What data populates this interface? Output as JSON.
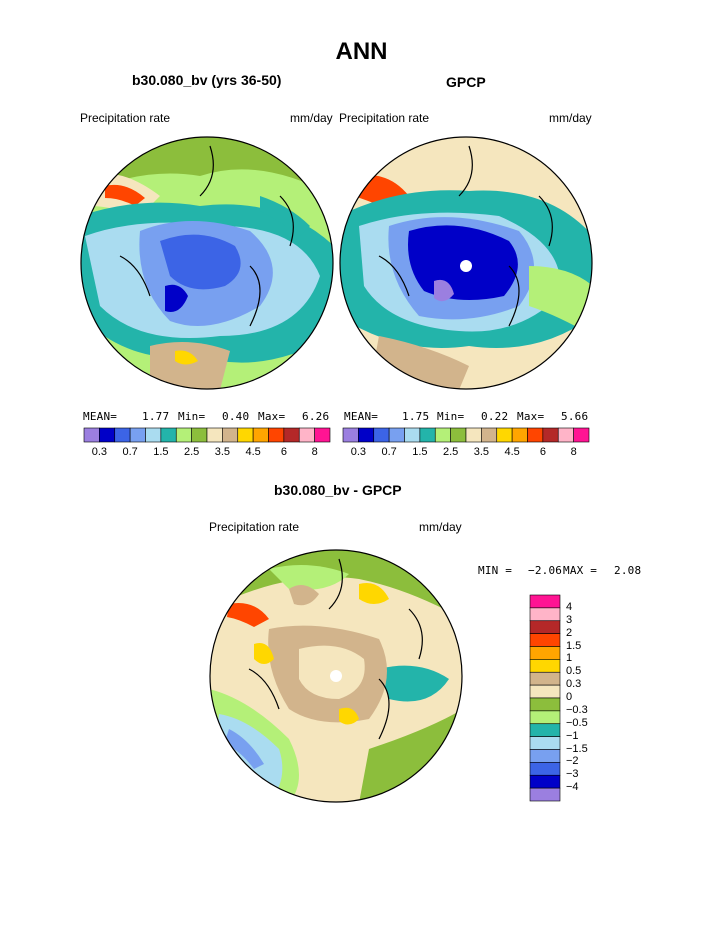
{
  "page_title": "ANN",
  "panels": [
    {
      "title": "b30.080_bv (yrs 36-50)",
      "left_label": "Precipitation rate",
      "right_label": "mm/day",
      "stats": {
        "mean_label": "MEAN=",
        "mean": "1.77",
        "min_label": "Min=",
        "min": "0.40",
        "max_label": "Max=",
        "max": "6.26"
      }
    },
    {
      "title": "GPCP",
      "left_label": "Precipitation rate",
      "right_label": "mm/day",
      "stats": {
        "mean_label": "MEAN=",
        "mean": "1.75",
        "min_label": "Min=",
        "min": "0.22",
        "max_label": "Max=",
        "max": "5.66"
      }
    },
    {
      "title": "b30.080_bv - GPCP",
      "left_label": "Precipitation rate",
      "right_label": "mm/day",
      "stats": {
        "min_label": "MIN =",
        "min": "−2.06",
        "max_label": "MAX =",
        "max": "2.08"
      }
    }
  ],
  "colorbar_precip": {
    "colors": [
      "#9b7fe0",
      "#0000c8",
      "#3c64e6",
      "#78a0f0",
      "#aadcf0",
      "#23b4aa",
      "#b4f078",
      "#8cbe3c",
      "#f5e6be",
      "#d2b48c",
      "#ffd700",
      "#ffa500",
      "#ff4500",
      "#b42828",
      "#ffb4c8",
      "#ff1493"
    ],
    "tick_labels": [
      "0.3",
      "0.7",
      "1.5",
      "2.5",
      "3.5",
      "4.5",
      "6",
      "8"
    ]
  },
  "colorbar_diff": {
    "colors": [
      "#ff1493",
      "#ffb4c8",
      "#b42828",
      "#ff4500",
      "#ffa500",
      "#ffd700",
      "#d2b48c",
      "#f5e6be",
      "#8cbe3c",
      "#b4f078",
      "#23b4aa",
      "#aadcf0",
      "#78a0f0",
      "#3c64e6",
      "#0000c8",
      "#9b7fe0"
    ],
    "tick_labels": [
      "4",
      "3",
      "2",
      "1.5",
      "1",
      "0.5",
      "0.3",
      "0",
      "−0.3",
      "−0.5",
      "−1",
      "−1.5",
      "−2",
      "−3",
      "−4"
    ]
  }
}
